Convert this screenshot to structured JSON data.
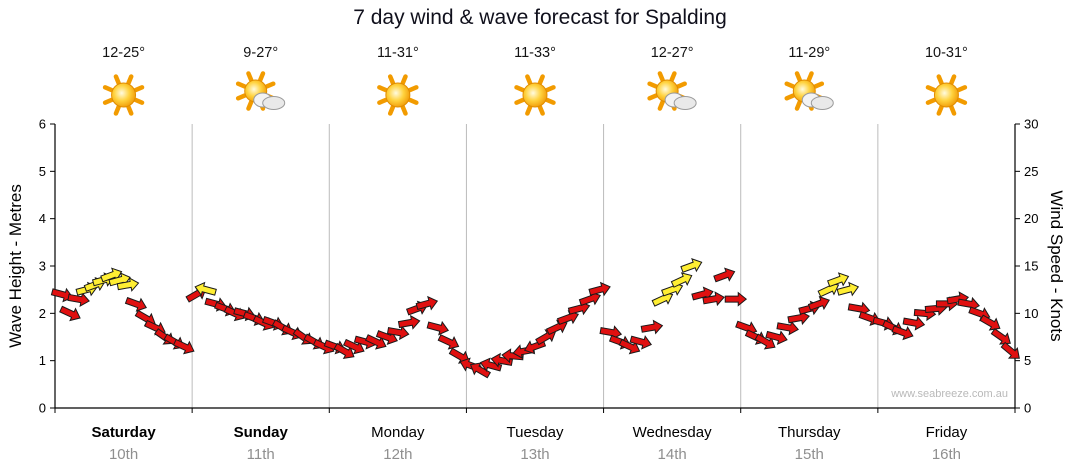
{
  "title": "7 day wind & wave forecast for Spalding",
  "watermark": "www.seabreeze.com.au",
  "left_axis": {
    "label": "Wave Height - Metres",
    "min": 0,
    "max": 6,
    "ticks": [
      0,
      1,
      2,
      3,
      4,
      5,
      6
    ]
  },
  "right_axis": {
    "label": "Wind Speed - Knots",
    "min": 0,
    "max": 30,
    "ticks": [
      0,
      5,
      10,
      15,
      20,
      25,
      30
    ]
  },
  "days": [
    {
      "name": "Saturday",
      "date": "10th",
      "temp": "12-25°",
      "icon": "sunny",
      "weekend": true
    },
    {
      "name": "Sunday",
      "date": "11th",
      "temp": "9-27°",
      "icon": "partly-cloudy",
      "weekend": true
    },
    {
      "name": "Monday",
      "date": "12th",
      "temp": "11-31°",
      "icon": "sunny",
      "weekend": false
    },
    {
      "name": "Tuesday",
      "date": "13th",
      "temp": "11-33°",
      "icon": "sunny",
      "weekend": false
    },
    {
      "name": "Wednesday",
      "date": "14th",
      "temp": "12-27°",
      "icon": "partly-cloudy",
      "weekend": false
    },
    {
      "name": "Thursday",
      "date": "15th",
      "temp": "11-29°",
      "icon": "partly-cloudy",
      "weekend": false
    },
    {
      "name": "Friday",
      "date": "16th",
      "temp": "10-31°",
      "icon": "sunny",
      "weekend": false
    }
  ],
  "chart_data": {
    "type": "scatter",
    "title": "7 day wind & wave forecast for Spalding",
    "x_unit": "days from start of Saturday 10th (0-7)",
    "ylabel_left": "Wave Height - Metres",
    "ylabel_right": "Wind Speed - Knots",
    "ylim_left": [
      0,
      6
    ],
    "ylim_right": [
      0,
      30
    ],
    "grid": "vertical lines at day boundaries",
    "legend": "arrow color: red = normal wind, yellow = stronger/sea-breeze wind; arrow rotation = wind direction",
    "colors": {
      "red": "#e01010",
      "yellow": "#ffee33"
    },
    "point_format": [
      "day_offset",
      "knots",
      "direction_deg_cw_from_east",
      "color"
    ],
    "points": [
      [
        0.05,
        12,
        15,
        "red"
      ],
      [
        0.11,
        10,
        25,
        "red"
      ],
      [
        0.17,
        11.5,
        10,
        "red"
      ],
      [
        0.23,
        12.5,
        -15,
        "yellow"
      ],
      [
        0.29,
        13,
        -20,
        "yellow"
      ],
      [
        0.35,
        13.5,
        -15,
        "yellow"
      ],
      [
        0.41,
        14,
        -20,
        "yellow"
      ],
      [
        0.47,
        13.5,
        -15,
        "yellow"
      ],
      [
        0.53,
        13,
        -10,
        "yellow"
      ],
      [
        0.59,
        11,
        20,
        "red"
      ],
      [
        0.66,
        9.5,
        30,
        "red"
      ],
      [
        0.73,
        8.5,
        25,
        "red"
      ],
      [
        0.8,
        7.5,
        35,
        "red"
      ],
      [
        0.87,
        7,
        30,
        "red"
      ],
      [
        0.94,
        6.5,
        25,
        "red"
      ],
      [
        1.03,
        12,
        -30,
        "red"
      ],
      [
        1.1,
        12.5,
        195,
        "yellow"
      ],
      [
        1.17,
        11,
        15,
        "red"
      ],
      [
        1.24,
        10.5,
        20,
        "red"
      ],
      [
        1.31,
        10,
        25,
        "red"
      ],
      [
        1.38,
        10,
        15,
        "red"
      ],
      [
        1.45,
        9.5,
        20,
        "red"
      ],
      [
        1.52,
        9,
        25,
        "red"
      ],
      [
        1.59,
        9,
        20,
        "red"
      ],
      [
        1.66,
        8.5,
        30,
        "red"
      ],
      [
        1.73,
        8,
        25,
        "red"
      ],
      [
        1.81,
        7.5,
        35,
        "red"
      ],
      [
        1.89,
        7,
        30,
        "red"
      ],
      [
        1.96,
        6.5,
        25,
        "red"
      ],
      [
        2.04,
        6.5,
        20,
        "red"
      ],
      [
        2.11,
        6,
        30,
        "red"
      ],
      [
        2.18,
        6.5,
        25,
        "red"
      ],
      [
        2.26,
        7,
        15,
        "red"
      ],
      [
        2.34,
        7,
        25,
        "red"
      ],
      [
        2.42,
        7.5,
        20,
        "red"
      ],
      [
        2.5,
        8,
        10,
        "red"
      ],
      [
        2.58,
        9,
        -10,
        "red"
      ],
      [
        2.64,
        10.5,
        -20,
        "red"
      ],
      [
        2.71,
        11,
        -15,
        "red"
      ],
      [
        2.79,
        8.5,
        15,
        "red"
      ],
      [
        2.87,
        7,
        25,
        "red"
      ],
      [
        2.95,
        5.5,
        30,
        "red"
      ],
      [
        3.03,
        4.5,
        200,
        "red"
      ],
      [
        3.1,
        4,
        210,
        "red"
      ],
      [
        3.18,
        4.5,
        195,
        "red"
      ],
      [
        3.26,
        5,
        190,
        "red"
      ],
      [
        3.34,
        5.5,
        185,
        "red"
      ],
      [
        3.42,
        6,
        170,
        "red"
      ],
      [
        3.5,
        6.5,
        160,
        "red"
      ],
      [
        3.58,
        7.5,
        -30,
        "red"
      ],
      [
        3.66,
        8.5,
        -25,
        "red"
      ],
      [
        3.74,
        9.5,
        -20,
        "red"
      ],
      [
        3.82,
        10.5,
        -15,
        "red"
      ],
      [
        3.9,
        11.5,
        -20,
        "red"
      ],
      [
        3.97,
        12.5,
        -15,
        "red"
      ],
      [
        4.05,
        8,
        10,
        "red"
      ],
      [
        4.12,
        7,
        20,
        "red"
      ],
      [
        4.19,
        6.5,
        25,
        "red"
      ],
      [
        4.27,
        7,
        15,
        "red"
      ],
      [
        4.35,
        8.5,
        -10,
        "red"
      ],
      [
        4.43,
        11.5,
        -25,
        "yellow"
      ],
      [
        4.5,
        12.5,
        -20,
        "yellow"
      ],
      [
        4.57,
        13.5,
        -25,
        "yellow"
      ],
      [
        4.64,
        15,
        -20,
        "yellow"
      ],
      [
        4.72,
        12,
        -15,
        "red"
      ],
      [
        4.8,
        11.5,
        -10,
        "red"
      ],
      [
        4.88,
        14,
        -20,
        "red"
      ],
      [
        4.96,
        11.5,
        0,
        "red"
      ],
      [
        5.04,
        8.5,
        20,
        "red"
      ],
      [
        5.11,
        7.5,
        25,
        "red"
      ],
      [
        5.18,
        7,
        30,
        "red"
      ],
      [
        5.26,
        7.5,
        15,
        "red"
      ],
      [
        5.34,
        8.5,
        10,
        "red"
      ],
      [
        5.42,
        9.5,
        -10,
        "red"
      ],
      [
        5.5,
        10.5,
        -15,
        "red"
      ],
      [
        5.57,
        11,
        -20,
        "red"
      ],
      [
        5.64,
        12.5,
        -25,
        "yellow"
      ],
      [
        5.71,
        13.5,
        -20,
        "yellow"
      ],
      [
        5.78,
        12.5,
        -15,
        "yellow"
      ],
      [
        5.86,
        10.5,
        10,
        "red"
      ],
      [
        5.94,
        9.5,
        20,
        "red"
      ],
      [
        6.04,
        9,
        15,
        "red"
      ],
      [
        6.11,
        8.5,
        25,
        "red"
      ],
      [
        6.18,
        8,
        20,
        "red"
      ],
      [
        6.26,
        9,
        10,
        "red"
      ],
      [
        6.34,
        10,
        5,
        "red"
      ],
      [
        6.42,
        10.5,
        -5,
        "red"
      ],
      [
        6.5,
        11,
        0,
        "red"
      ],
      [
        6.58,
        11.5,
        -10,
        "red"
      ],
      [
        6.66,
        11,
        10,
        "red"
      ],
      [
        6.74,
        10,
        20,
        "red"
      ],
      [
        6.82,
        9,
        30,
        "red"
      ],
      [
        6.9,
        7.5,
        35,
        "red"
      ],
      [
        6.97,
        6,
        40,
        "red"
      ]
    ]
  }
}
